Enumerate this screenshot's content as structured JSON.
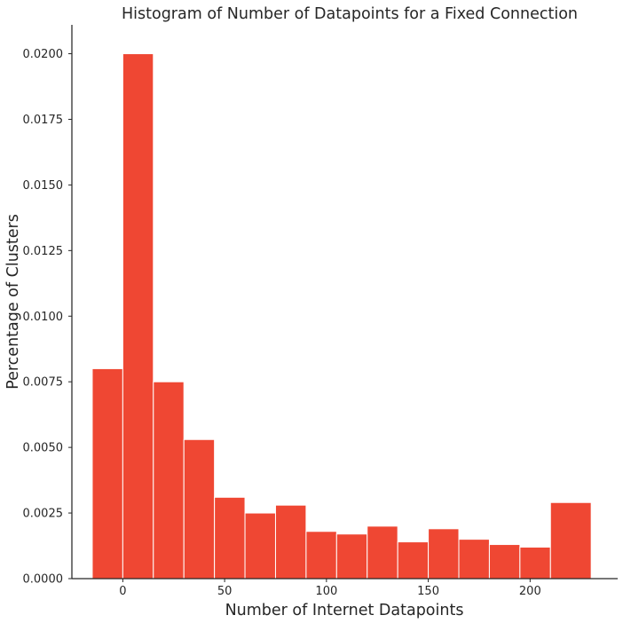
{
  "chart_data": {
    "type": "bar",
    "title": "Histogram of Number of Datapoints for a Fixed Connection",
    "xlabel": "Number of Internet Datapoints",
    "ylabel": "Percentage of Clusters",
    "xlim": [
      -25,
      243
    ],
    "ylim": [
      0,
      0.0211
    ],
    "bar_color": "#ef4733",
    "grid": false,
    "x_ticks": [
      {
        "value": 0,
        "label": "0"
      },
      {
        "value": 50,
        "label": "50"
      },
      {
        "value": 100,
        "label": "100"
      },
      {
        "value": 150,
        "label": "150"
      },
      {
        "value": 200,
        "label": "200"
      }
    ],
    "y_ticks": [
      {
        "value": 0,
        "label": "0.0000"
      },
      {
        "value": 0.0025,
        "label": "0.0025"
      },
      {
        "value": 0.005,
        "label": "0.0050"
      },
      {
        "value": 0.0075,
        "label": "0.0075"
      },
      {
        "value": 0.01,
        "label": "0.0100"
      },
      {
        "value": 0.0125,
        "label": "0.0125"
      },
      {
        "value": 0.015,
        "label": "0.0150"
      },
      {
        "value": 0.0175,
        "label": "0.0175"
      },
      {
        "value": 0.02,
        "label": "0.0200"
      }
    ],
    "bins": [
      {
        "x0": -15,
        "x1": 0,
        "value": 0.008
      },
      {
        "x0": 0,
        "x1": 15,
        "value": 0.02
      },
      {
        "x0": 15,
        "x1": 30,
        "value": 0.0075
      },
      {
        "x0": 30,
        "x1": 45,
        "value": 0.0053
      },
      {
        "x0": 45,
        "x1": 60,
        "value": 0.0031
      },
      {
        "x0": 60,
        "x1": 75,
        "value": 0.0025
      },
      {
        "x0": 75,
        "x1": 90,
        "value": 0.0028
      },
      {
        "x0": 90,
        "x1": 105,
        "value": 0.0018
      },
      {
        "x0": 105,
        "x1": 120,
        "value": 0.0017
      },
      {
        "x0": 120,
        "x1": 135,
        "value": 0.002
      },
      {
        "x0": 135,
        "x1": 150,
        "value": 0.0014
      },
      {
        "x0": 150,
        "x1": 165,
        "value": 0.0019
      },
      {
        "x0": 165,
        "x1": 180,
        "value": 0.0015
      },
      {
        "x0": 180,
        "x1": 195,
        "value": 0.0013
      },
      {
        "x0": 195,
        "x1": 210,
        "value": 0.0012
      },
      {
        "x0": 210,
        "x1": 230,
        "value": 0.0029
      }
    ]
  }
}
